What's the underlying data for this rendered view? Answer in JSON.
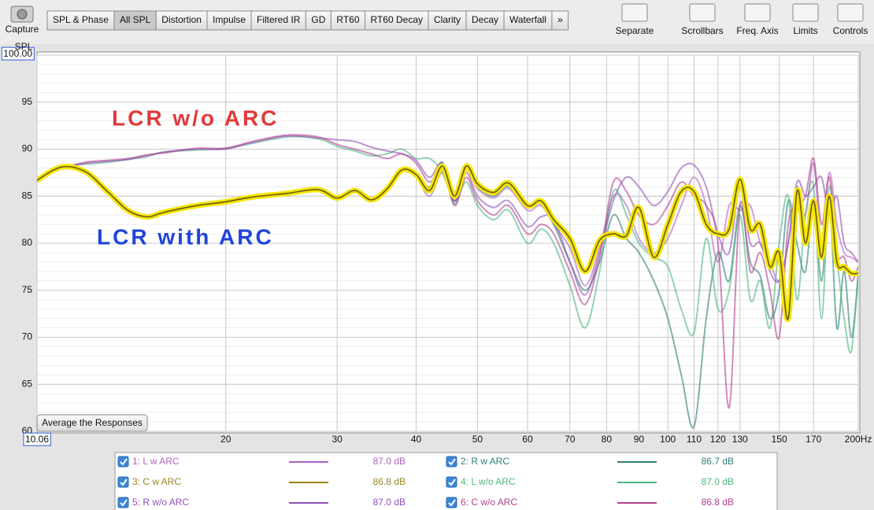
{
  "toolbar": {
    "capture": "Capture",
    "tabs": [
      "SPL & Phase",
      "All SPL",
      "Distortion",
      "Impulse",
      "Filtered IR",
      "GD",
      "RT60",
      "RT60 Decay",
      "Clarity",
      "Decay",
      "Waterfall",
      "»"
    ],
    "selected_tab": 1,
    "tools": [
      "Separate",
      "Scrollbars",
      "Freq. Axis",
      "Limits",
      "Controls"
    ]
  },
  "chart_data": {
    "type": "line",
    "y_label": "SPL",
    "x_scale": "log",
    "grid": true,
    "button": "Average the Responses",
    "xlim": [
      10.06,
      200
    ],
    "ylim": [
      60,
      100
    ],
    "xticks": [
      {
        "value": 10.06,
        "label": "10.06"
      },
      20,
      30,
      40,
      50,
      60,
      70,
      80,
      90,
      100,
      110,
      120,
      130,
      150,
      170,
      {
        "value": 200,
        "label": "200Hz"
      }
    ],
    "yticks": [
      60,
      65,
      70,
      75,
      80,
      85,
      90,
      95,
      {
        "value": 100,
        "label": "100.00"
      }
    ],
    "annotations": [
      {
        "text": "LCR w/o ARC",
        "color": "#e03a3a"
      },
      {
        "text": "LCR with ARC",
        "color": "#1f44dc"
      }
    ],
    "highlight_color": "#f4e600",
    "x": [
      10.06,
      11,
      12,
      13,
      14,
      15,
      16,
      18,
      20,
      22,
      25,
      28,
      30,
      32,
      34,
      36,
      38,
      40,
      42,
      44,
      46,
      48,
      50,
      53,
      56,
      60,
      63,
      66,
      70,
      74,
      78,
      82,
      86,
      90,
      95,
      100,
      105,
      110,
      115,
      120,
      125,
      130,
      135,
      140,
      145,
      150,
      155,
      160,
      165,
      170,
      175,
      180,
      185,
      190,
      195,
      200
    ],
    "series": [
      {
        "name": "1: L w ARC",
        "level": "87.0 dB",
        "color": "#b060c0",
        "values": [
          86.8,
          88.0,
          87.7,
          85.6,
          83.4,
          82.9,
          83.2,
          84.1,
          84.5,
          84.8,
          85.4,
          85.6,
          84.9,
          85.5,
          84.7,
          85.9,
          87.6,
          87.0,
          85.0,
          87.5,
          84.5,
          87.8,
          85.8,
          84.8,
          85.8,
          83.5,
          84.0,
          82.0,
          79.5,
          75.5,
          79.5,
          85.0,
          84.0,
          80.5,
          79.0,
          80.5,
          84.0,
          87.0,
          84.0,
          78.0,
          84.0,
          83.5,
          84.0,
          80.0,
          78.0,
          76.0,
          80.0,
          86.0,
          83.0,
          88.5,
          80.0,
          87.5,
          82.0,
          79.0,
          78.5,
          78.0
        ]
      },
      {
        "name": "2: R w ARC",
        "level": "86.7 dB",
        "color": "#2e7f78",
        "values": [
          86.6,
          88.0,
          87.5,
          85.4,
          83.6,
          82.8,
          83.4,
          84.0,
          84.3,
          84.9,
          85.2,
          85.7,
          84.7,
          85.6,
          84.5,
          85.7,
          87.9,
          87.4,
          86.0,
          88.6,
          84.2,
          88.0,
          86.0,
          85.0,
          86.0,
          83.8,
          84.2,
          82.0,
          78.0,
          75.0,
          78.0,
          83.0,
          80.5,
          79.0,
          76.0,
          72.0,
          66.0,
          60.5,
          72.0,
          79.0,
          76.0,
          84.0,
          78.0,
          76.5,
          72.0,
          75.0,
          84.5,
          80.0,
          77.0,
          84.0,
          76.0,
          84.5,
          71.0,
          77.0,
          70.0,
          76.5
        ]
      },
      {
        "name": "3: C w ARC",
        "level": "86.8 dB",
        "color": "#9a8420",
        "selected": true,
        "values": [
          86.7,
          88.1,
          87.6,
          85.5,
          83.5,
          82.8,
          83.3,
          84.0,
          84.4,
          84.9,
          85.3,
          85.7,
          84.8,
          85.6,
          84.6,
          85.8,
          87.8,
          87.3,
          85.6,
          88.2,
          85.0,
          88.2,
          86.3,
          85.4,
          86.4,
          84.0,
          84.5,
          82.5,
          80.5,
          77.0,
          80.3,
          81.0,
          80.8,
          83.8,
          78.5,
          82.0,
          85.5,
          85.5,
          82.0,
          81.0,
          81.5,
          86.8,
          81.5,
          82.0,
          77.5,
          79.0,
          72.0,
          85.5,
          80.0,
          84.5,
          78.5,
          85.0,
          78.0,
          77.5,
          76.8,
          76.8
        ]
      },
      {
        "name": "4: L w/o ARC",
        "level": "87.0 dB",
        "color": "#4cb67e",
        "values": [
          86.9,
          88.1,
          88.4,
          88.6,
          88.9,
          89.2,
          89.7,
          89.9,
          90.1,
          90.6,
          91.3,
          91.1,
          90.3,
          89.8,
          89.3,
          89.5,
          90.0,
          89.0,
          89.0,
          87.5,
          84.5,
          86.5,
          84.0,
          82.5,
          83.5,
          80.0,
          81.5,
          80.0,
          75.5,
          71.0,
          77.0,
          85.5,
          83.0,
          80.0,
          78.5,
          77.5,
          73.0,
          70.5,
          80.5,
          73.0,
          75.0,
          83.0,
          74.0,
          76.0,
          71.0,
          80.0,
          85.0,
          74.0,
          83.0,
          86.0,
          72.0,
          86.0,
          78.5,
          72.0,
          68.5,
          77.0
        ]
      },
      {
        "name": "5: R w/o ARC",
        "level": "87.0 dB",
        "color": "#9050b8",
        "values": [
          86.8,
          88.0,
          88.5,
          88.7,
          88.9,
          89.3,
          89.7,
          90.0,
          90.0,
          90.7,
          91.4,
          91.2,
          91.0,
          90.8,
          90.2,
          89.8,
          89.5,
          88.8,
          87.0,
          88.5,
          84.5,
          87.5,
          85.0,
          83.8,
          84.5,
          81.8,
          82.8,
          82.5,
          78.0,
          74.5,
          79.0,
          84.5,
          87.0,
          86.0,
          84.0,
          85.5,
          88.0,
          88.3,
          86.0,
          81.0,
          79.0,
          86.0,
          80.0,
          80.0,
          77.0,
          76.0,
          80.0,
          86.5,
          85.0,
          86.0,
          87.0,
          83.0,
          85.0,
          80.0,
          79.0,
          78.0
        ]
      },
      {
        "name": "6: C w/o ARC",
        "level": "86.8 dB",
        "color": "#b04090",
        "values": [
          86.7,
          87.9,
          88.6,
          88.8,
          89.0,
          89.4,
          89.6,
          90.1,
          90.1,
          90.8,
          91.5,
          91.3,
          90.5,
          90.0,
          89.5,
          89.0,
          89.5,
          88.5,
          86.5,
          88.0,
          84.0,
          87.0,
          84.5,
          83.0,
          84.0,
          81.0,
          82.0,
          81.0,
          77.0,
          73.5,
          78.5,
          86.5,
          85.5,
          83.0,
          82.0,
          84.0,
          86.5,
          85.0,
          84.0,
          80.0,
          62.5,
          84.0,
          77.0,
          79.0,
          75.0,
          70.0,
          82.0,
          84.0,
          85.0,
          89.0,
          82.0,
          87.0,
          79.0,
          78.5,
          76.0,
          77.5
        ]
      }
    ]
  }
}
